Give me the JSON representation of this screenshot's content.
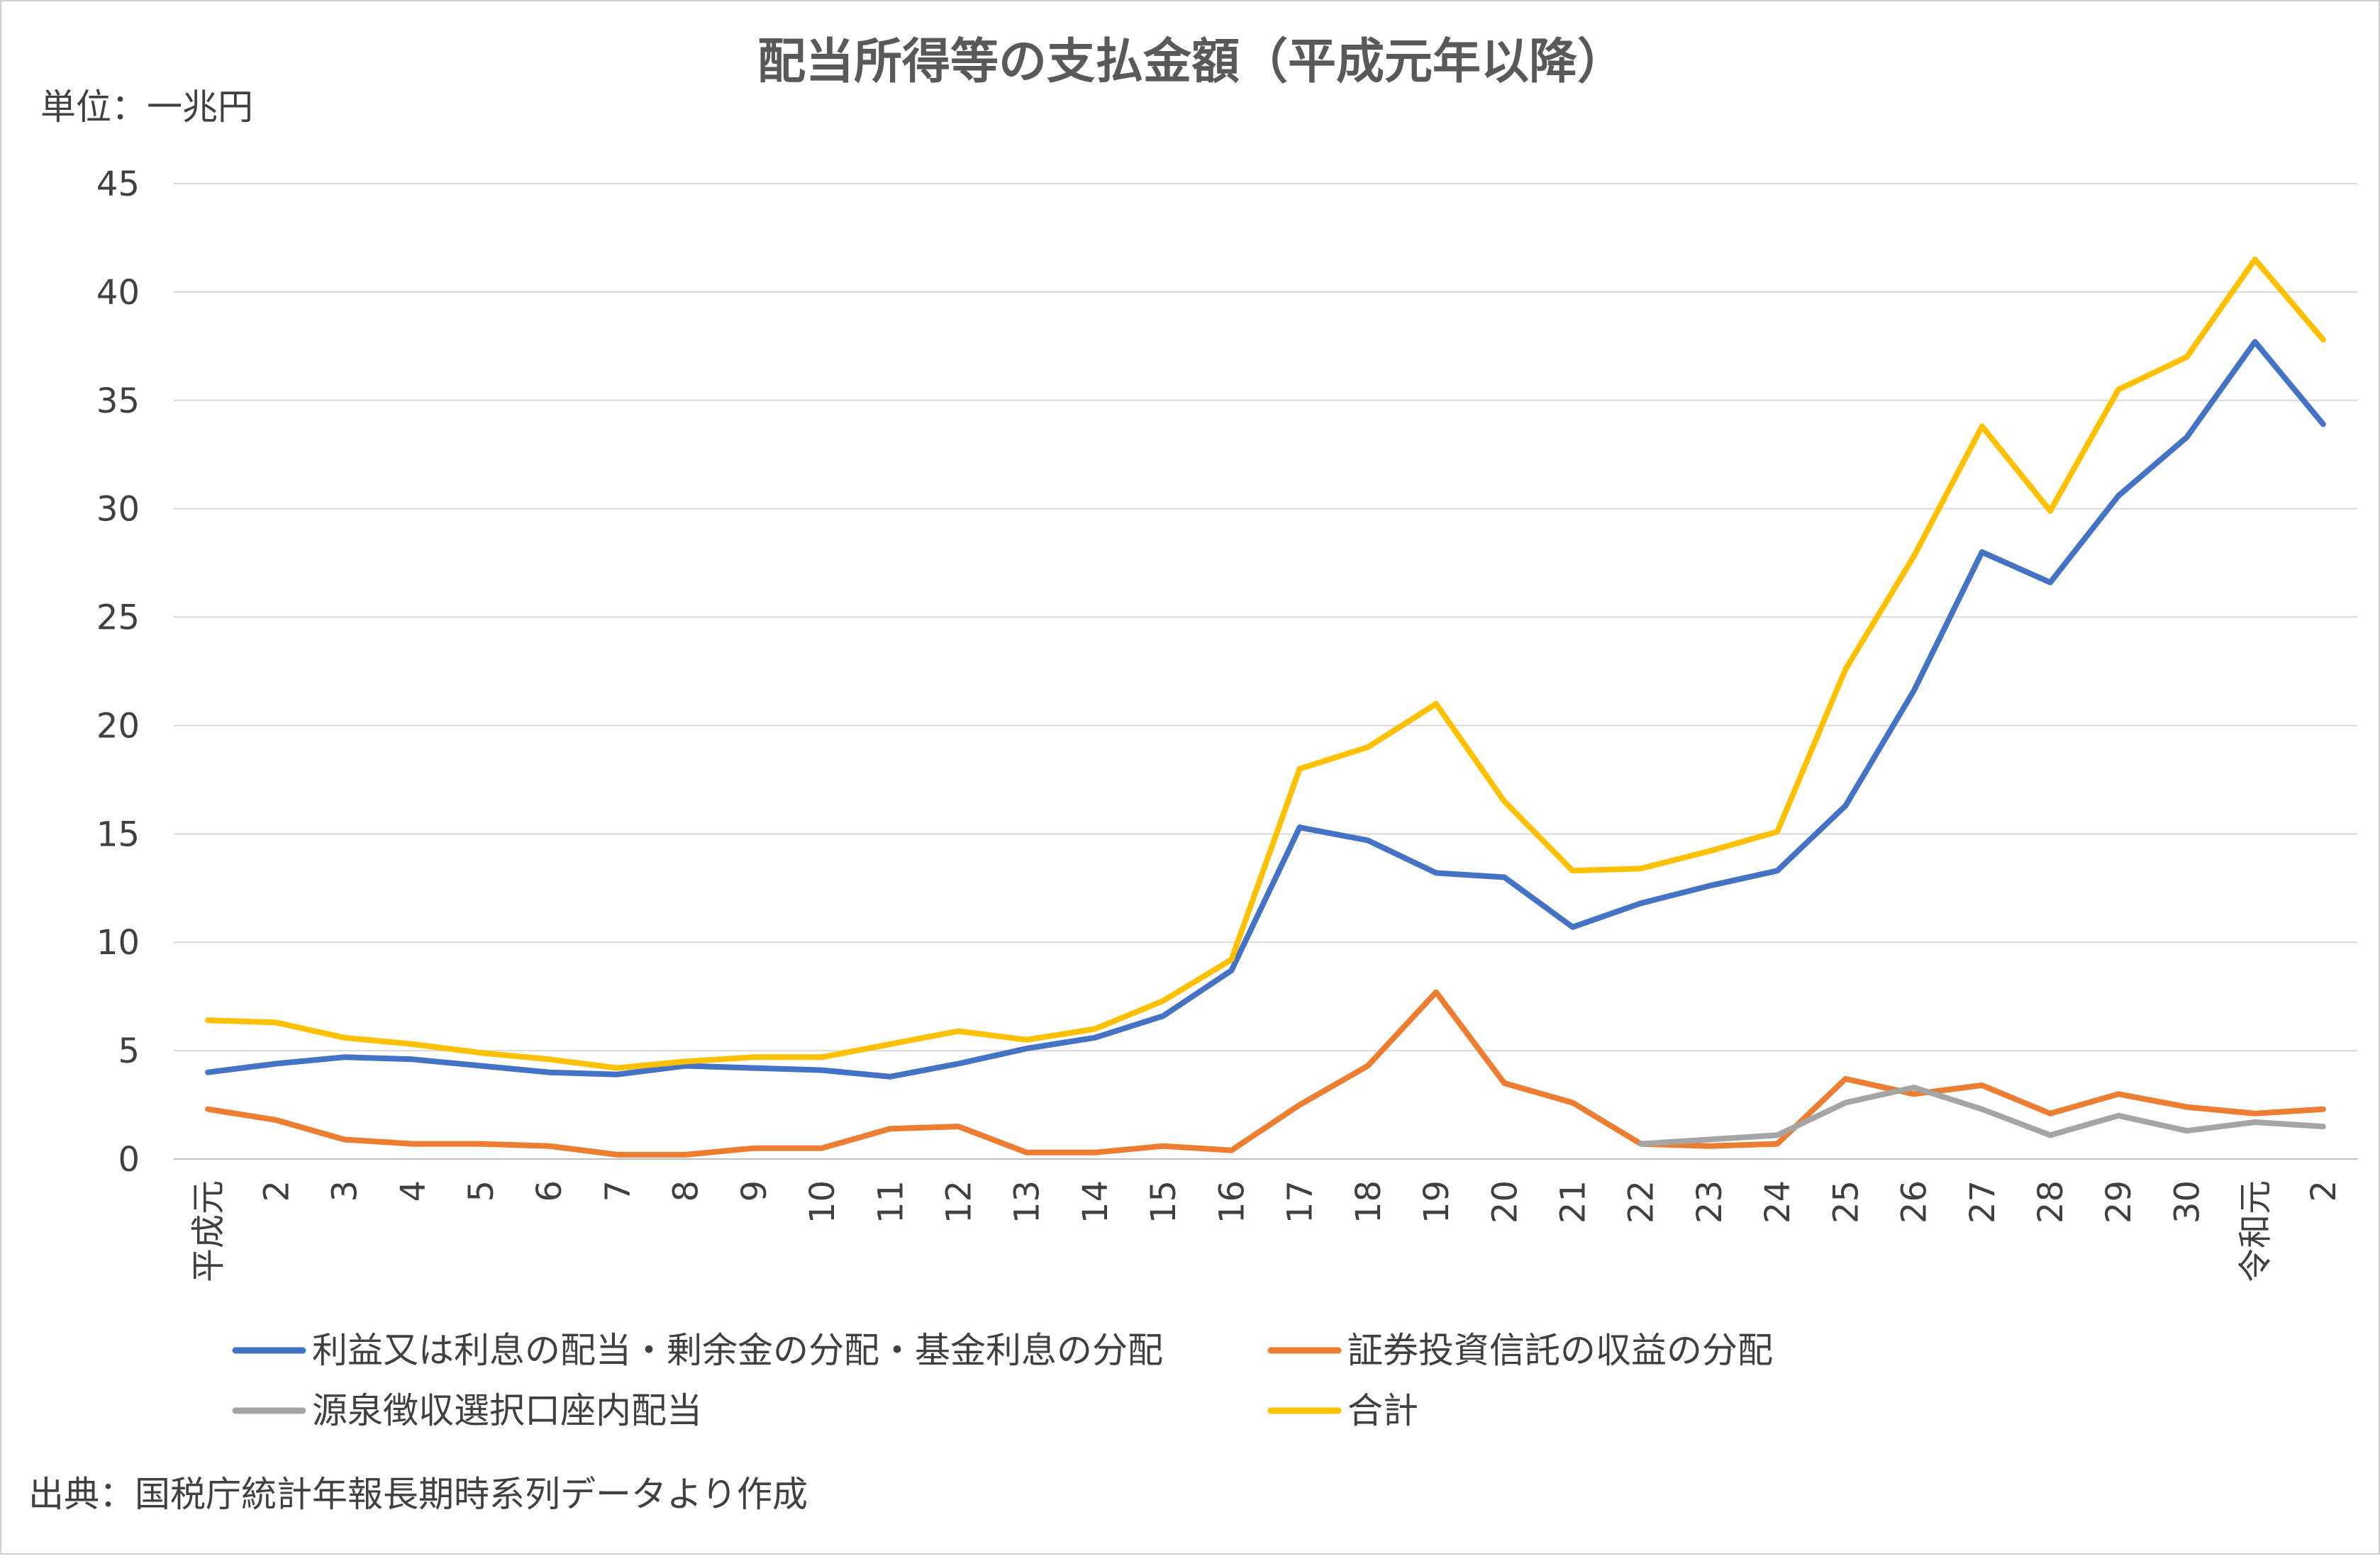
{
  "chart_data": {
    "type": "line",
    "title": "配当所得等の支払金額（平成元年以降）",
    "unit_label": "単位：一兆円",
    "source": "出典：国税庁統計年報長期時系列データより作成",
    "categories": [
      "平成元",
      "2",
      "3",
      "4",
      "5",
      "6",
      "7",
      "8",
      "9",
      "10",
      "11",
      "12",
      "13",
      "14",
      "15",
      "16",
      "17",
      "18",
      "19",
      "20",
      "21",
      "22",
      "23",
      "24",
      "25",
      "26",
      "27",
      "28",
      "29",
      "30",
      "令和元",
      "2"
    ],
    "ylim": [
      0,
      45
    ],
    "yticks": [
      0,
      5,
      10,
      15,
      20,
      25,
      30,
      35,
      40,
      45
    ],
    "grid": true,
    "legend_position": "bottom",
    "series": [
      {
        "name": "利益又は利息の配当・剰余金の分配・基金利息の分配",
        "color": "#4472C4",
        "values": [
          4.0,
          4.4,
          4.7,
          4.6,
          4.3,
          4.0,
          3.9,
          4.3,
          4.2,
          4.1,
          3.8,
          4.4,
          5.1,
          5.6,
          6.6,
          8.7,
          15.3,
          14.7,
          13.2,
          13.0,
          10.7,
          11.8,
          12.6,
          13.3,
          16.3,
          21.6,
          28.0,
          26.6,
          30.6,
          33.3,
          37.7,
          33.9
        ]
      },
      {
        "name": "証券投資信託の収益の分配",
        "color": "#ED7D31",
        "values": [
          2.3,
          1.8,
          0.9,
          0.7,
          0.7,
          0.6,
          0.2,
          0.2,
          0.5,
          0.5,
          1.4,
          1.5,
          0.3,
          0.3,
          0.6,
          0.4,
          2.5,
          4.3,
          7.7,
          3.5,
          2.6,
          0.7,
          0.6,
          0.7,
          3.7,
          3.0,
          3.4,
          2.1,
          3.0,
          2.4,
          2.1,
          2.3
        ]
      },
      {
        "name": "源泉徴収選択口座内配当",
        "color": "#A5A5A5",
        "values": [
          null,
          null,
          null,
          null,
          null,
          null,
          null,
          null,
          null,
          null,
          null,
          null,
          null,
          null,
          null,
          null,
          null,
          null,
          null,
          null,
          null,
          0.7,
          0.9,
          1.1,
          2.6,
          3.3,
          2.3,
          1.1,
          2.0,
          1.3,
          1.7,
          1.5
        ]
      },
      {
        "name": "合計",
        "color": "#FFC000",
        "values": [
          6.4,
          6.3,
          5.6,
          5.3,
          4.9,
          4.6,
          4.2,
          4.5,
          4.7,
          4.7,
          5.3,
          5.9,
          5.5,
          6.0,
          7.3,
          9.2,
          18.0,
          19.0,
          21.0,
          16.5,
          13.3,
          13.4,
          14.2,
          15.1,
          22.6,
          27.8,
          33.8,
          29.9,
          35.5,
          37.0,
          41.5,
          37.8
        ]
      }
    ]
  }
}
